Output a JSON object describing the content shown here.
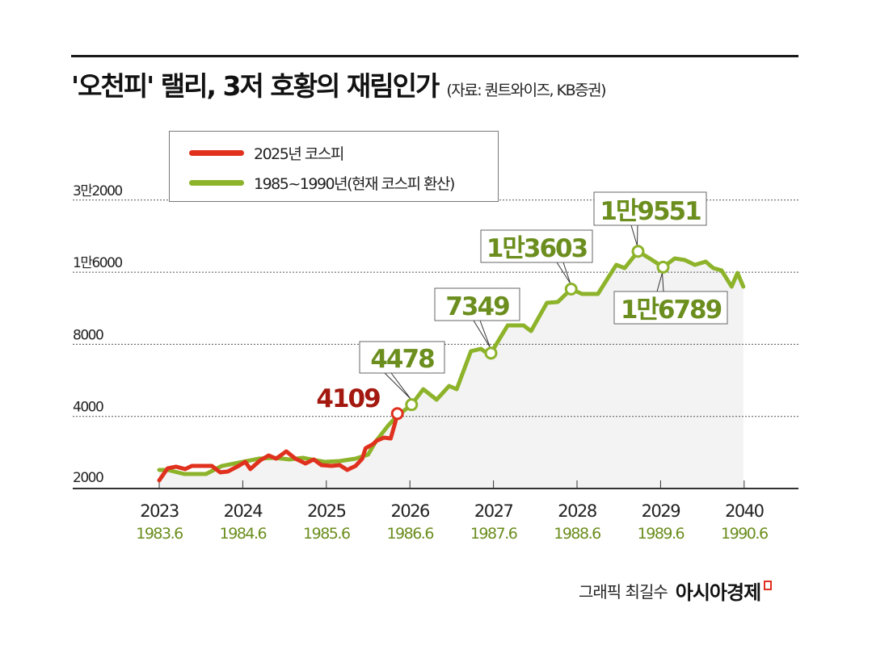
{
  "header": {
    "title": "'오천피' 랠리, 3저 호황의 재림인가",
    "source": "(자료: 퀀트와이즈, KB증권)"
  },
  "footer": {
    "credit": "그래픽 최길수",
    "brand": "아시아경제"
  },
  "colors": {
    "kospi_2025": "#e0301e",
    "kospi_1985_1990": "#8db32a",
    "label_green": "#6b8e1e",
    "label_red": "#a3180f",
    "area_fill": "#f3f3f3"
  },
  "chart_data": {
    "type": "line",
    "title": "'오천피' 랠리, 3저 호황의 재림인가",
    "y_scale": "log",
    "ylim": [
      2000,
      32000
    ],
    "grid": true,
    "legend_position": "top-left",
    "y_ticks": [
      {
        "value": 2000,
        "label": "2000"
      },
      {
        "value": 4000,
        "label": "4000"
      },
      {
        "value": 8000,
        "label": "8000"
      },
      {
        "value": 16000,
        "label": "1만6000"
      },
      {
        "value": 32000,
        "label": "3만2000"
      }
    ],
    "x_ticks": [
      "2023",
      "2024",
      "2025",
      "2026",
      "2027",
      "2028",
      "2029",
      "2040"
    ],
    "x_ticks_secondary": [
      "1983.6",
      "1984.6",
      "1985.6",
      "1986.6",
      "1987.6",
      "1988.6",
      "1989.6",
      "1990.6"
    ],
    "series": [
      {
        "name": "2025년 코스피",
        "axis": "primary",
        "x": [
          2023.0,
          2023.1,
          2023.2,
          2023.31,
          2023.39,
          2023.63,
          2023.73,
          2023.82,
          2023.95,
          2024.03,
          2024.09,
          2024.21,
          2024.31,
          2024.4,
          2024.52,
          2024.63,
          2024.75,
          2024.85,
          2024.94,
          2025.06,
          2025.16,
          2025.25,
          2025.35,
          2025.43,
          2025.47,
          2025.56,
          2025.6,
          2025.69,
          2025.77,
          2025.82,
          2025.85
        ],
        "y": [
          2162,
          2428,
          2467,
          2410,
          2485,
          2485,
          2336,
          2354,
          2485,
          2584,
          2410,
          2624,
          2749,
          2665,
          2858,
          2665,
          2544,
          2645,
          2505,
          2485,
          2505,
          2391,
          2485,
          2665,
          2948,
          3066,
          3162,
          3262,
          3236,
          3722,
          4109
        ]
      },
      {
        "name": "1985~1990년(현재 코스피 환산)",
        "axis": "secondary",
        "x": [
          1983.6,
          1983.7,
          1983.9,
          1984.16,
          1984.35,
          1984.6,
          1984.79,
          1984.98,
          1985.16,
          1985.32,
          1985.47,
          1985.58,
          1985.76,
          1985.95,
          1986.1,
          1986.19,
          1986.34,
          1986.45,
          1986.62,
          1986.76,
          1986.92,
          1987.07,
          1987.16,
          1987.33,
          1987.45,
          1987.53,
          1987.57,
          1987.77,
          1987.96,
          1988.05,
          1988.24,
          1988.37,
          1988.53,
          1988.66,
          1988.85,
          1989.07,
          1989.17,
          1989.33,
          1989.5,
          1989.63,
          1989.77,
          1989.89,
          1990.01,
          1990.14,
          1990.23,
          1990.33,
          1990.45,
          1990.52,
          1990.59
        ],
        "y": [
          2391,
          2391,
          2300,
          2300,
          2485,
          2584,
          2665,
          2686,
          2645,
          2686,
          2624,
          2584,
          2604,
          2665,
          2770,
          3138,
          3664,
          4022,
          4478,
          5196,
          4698,
          5360,
          5196,
          7484,
          7660,
          7312,
          7349,
          9594,
          9594,
          9086,
          11925,
          12018,
          13603,
          12986,
          12986,
          17172,
          16646,
          19551,
          17986,
          16789,
          18265,
          17986,
          17172,
          17712,
          16646,
          16268,
          13929,
          15887,
          13929
        ]
      }
    ],
    "annotations": [
      {
        "series": 0,
        "x": 2025.85,
        "value": 4109,
        "label": "4109"
      },
      {
        "series": 1,
        "x": 1986.62,
        "value": 4478,
        "label": "4478"
      },
      {
        "series": 1,
        "x": 1987.57,
        "value": 7349,
        "label": "7349"
      },
      {
        "series": 1,
        "x": 1988.53,
        "value": 13603,
        "label": "1만3603"
      },
      {
        "series": 1,
        "x": 1989.33,
        "value": 19551,
        "label": "1만9551"
      },
      {
        "series": 1,
        "x": 1989.63,
        "value": 16789,
        "label": "1만6789"
      }
    ]
  }
}
